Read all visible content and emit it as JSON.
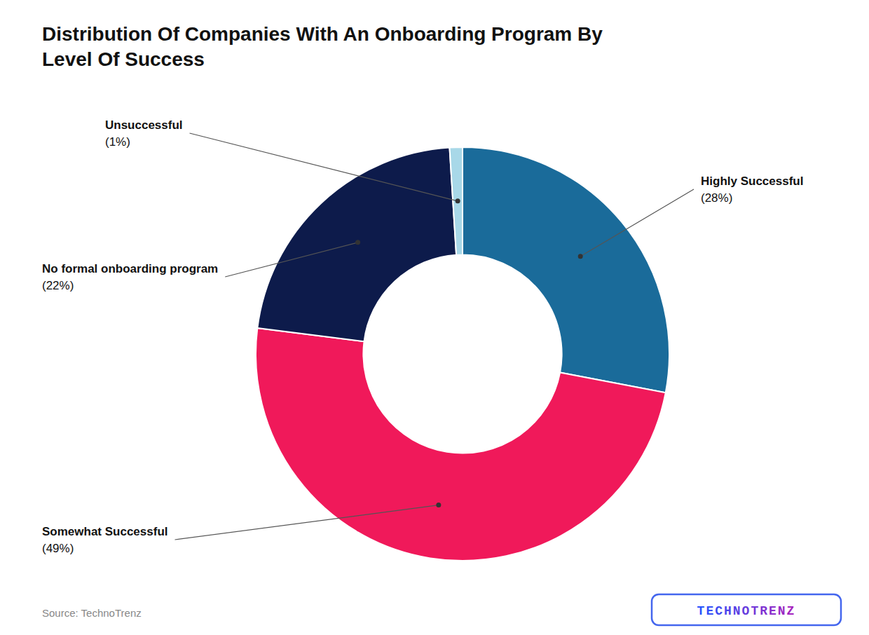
{
  "chart_data": {
    "type": "pie",
    "title": "Distribution Of Companies With An Onboarding Program By\nLevel Of Success",
    "categories": [
      "Highly Successful",
      "Somewhat Successful",
      "No formal onboarding program",
      "Unsuccessful"
    ],
    "values": [
      28,
      49,
      22,
      1
    ],
    "value_labels": [
      "(28%)",
      "(49%)",
      "(22%)",
      "(1%)"
    ],
    "colors": [
      "#1a6b9a",
      "#f0195a",
      "#0d1b4b",
      "#a8d8e8"
    ],
    "source": "Source: TechnoTrenz",
    "logo": "TECHNOTRENZ"
  }
}
